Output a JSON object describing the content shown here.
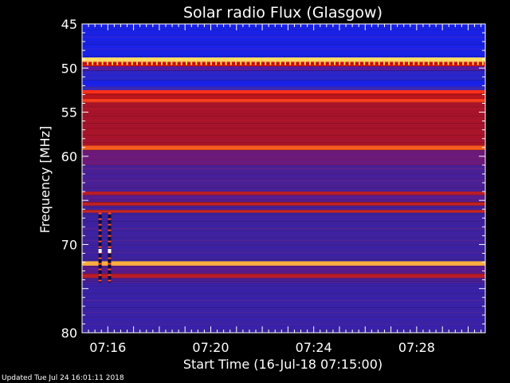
{
  "chart_data": {
    "type": "heatmap",
    "title": "Solar radio Flux (Glasgow)",
    "xlabel": "Start Time (16-Jul-18 07:15:00)",
    "ylabel": "Frequency [MHz]",
    "x_ticks": [
      "07:16",
      "07:20",
      "07:24",
      "07:28"
    ],
    "y_ticks": [
      "45",
      "50",
      "55",
      "60",
      "70",
      "80"
    ],
    "x_range": [
      "07:15:00",
      "07:30:40"
    ],
    "y_range": [
      45,
      80
    ],
    "background_level": "purple/blue",
    "bands": [
      {
        "from": 45.0,
        "to": 48.8,
        "color": "#1a22e6"
      },
      {
        "from": 48.8,
        "to": 49.3,
        "color": "#ffdd66"
      },
      {
        "from": 49.3,
        "to": 49.8,
        "color": "#d01010"
      },
      {
        "from": 49.8,
        "to": 50.3,
        "color": "#5a1c9a"
      },
      {
        "from": 50.3,
        "to": 51.4,
        "color": "#2a26c8"
      },
      {
        "from": 51.4,
        "to": 52.1,
        "color": "#1a22e6"
      },
      {
        "from": 52.1,
        "to": 52.5,
        "color": "#3a2ab8"
      },
      {
        "from": 52.5,
        "to": 52.9,
        "color": "#ff3018"
      },
      {
        "from": 52.9,
        "to": 53.5,
        "color": "#b8141c"
      },
      {
        "from": 53.5,
        "to": 53.9,
        "color": "#ff4020"
      },
      {
        "from": 53.9,
        "to": 58.8,
        "color": "#a8142a"
      },
      {
        "from": 58.8,
        "to": 59.3,
        "color": "#ff6018"
      },
      {
        "from": 59.3,
        "to": 61.0,
        "color": "#6e1a78"
      },
      {
        "from": 61.0,
        "to": 64.0,
        "color": "#4a2096"
      },
      {
        "from": 64.0,
        "to": 64.4,
        "color": "#b81c28"
      },
      {
        "from": 64.4,
        "to": 65.2,
        "color": "#5a1c8c"
      },
      {
        "from": 65.2,
        "to": 65.6,
        "color": "#c02020"
      },
      {
        "from": 65.6,
        "to": 66.1,
        "color": "#4a2096"
      },
      {
        "from": 66.1,
        "to": 66.4,
        "color": "#d02818"
      },
      {
        "from": 66.4,
        "to": 71.9,
        "color": "#3e229e"
      },
      {
        "from": 71.9,
        "to": 72.4,
        "color": "#ffb040"
      },
      {
        "from": 72.4,
        "to": 73.3,
        "color": "#5a1c8c"
      },
      {
        "from": 73.3,
        "to": 73.8,
        "color": "#b81c28"
      },
      {
        "from": 73.8,
        "to": 74.4,
        "color": "#4a2096"
      },
      {
        "from": 74.4,
        "to": 80.0,
        "color": "#3a22a6"
      }
    ],
    "interference_columns": [
      {
        "time": "07:15:42",
        "from_mhz": 66.4,
        "to_mhz": 74.3
      },
      {
        "time": "07:16:04",
        "from_mhz": 66.4,
        "to_mhz": 74.3
      }
    ],
    "grid": false,
    "legend": "none"
  },
  "footer_text": "Updated Tue Jul 24 16:01:11 2018"
}
